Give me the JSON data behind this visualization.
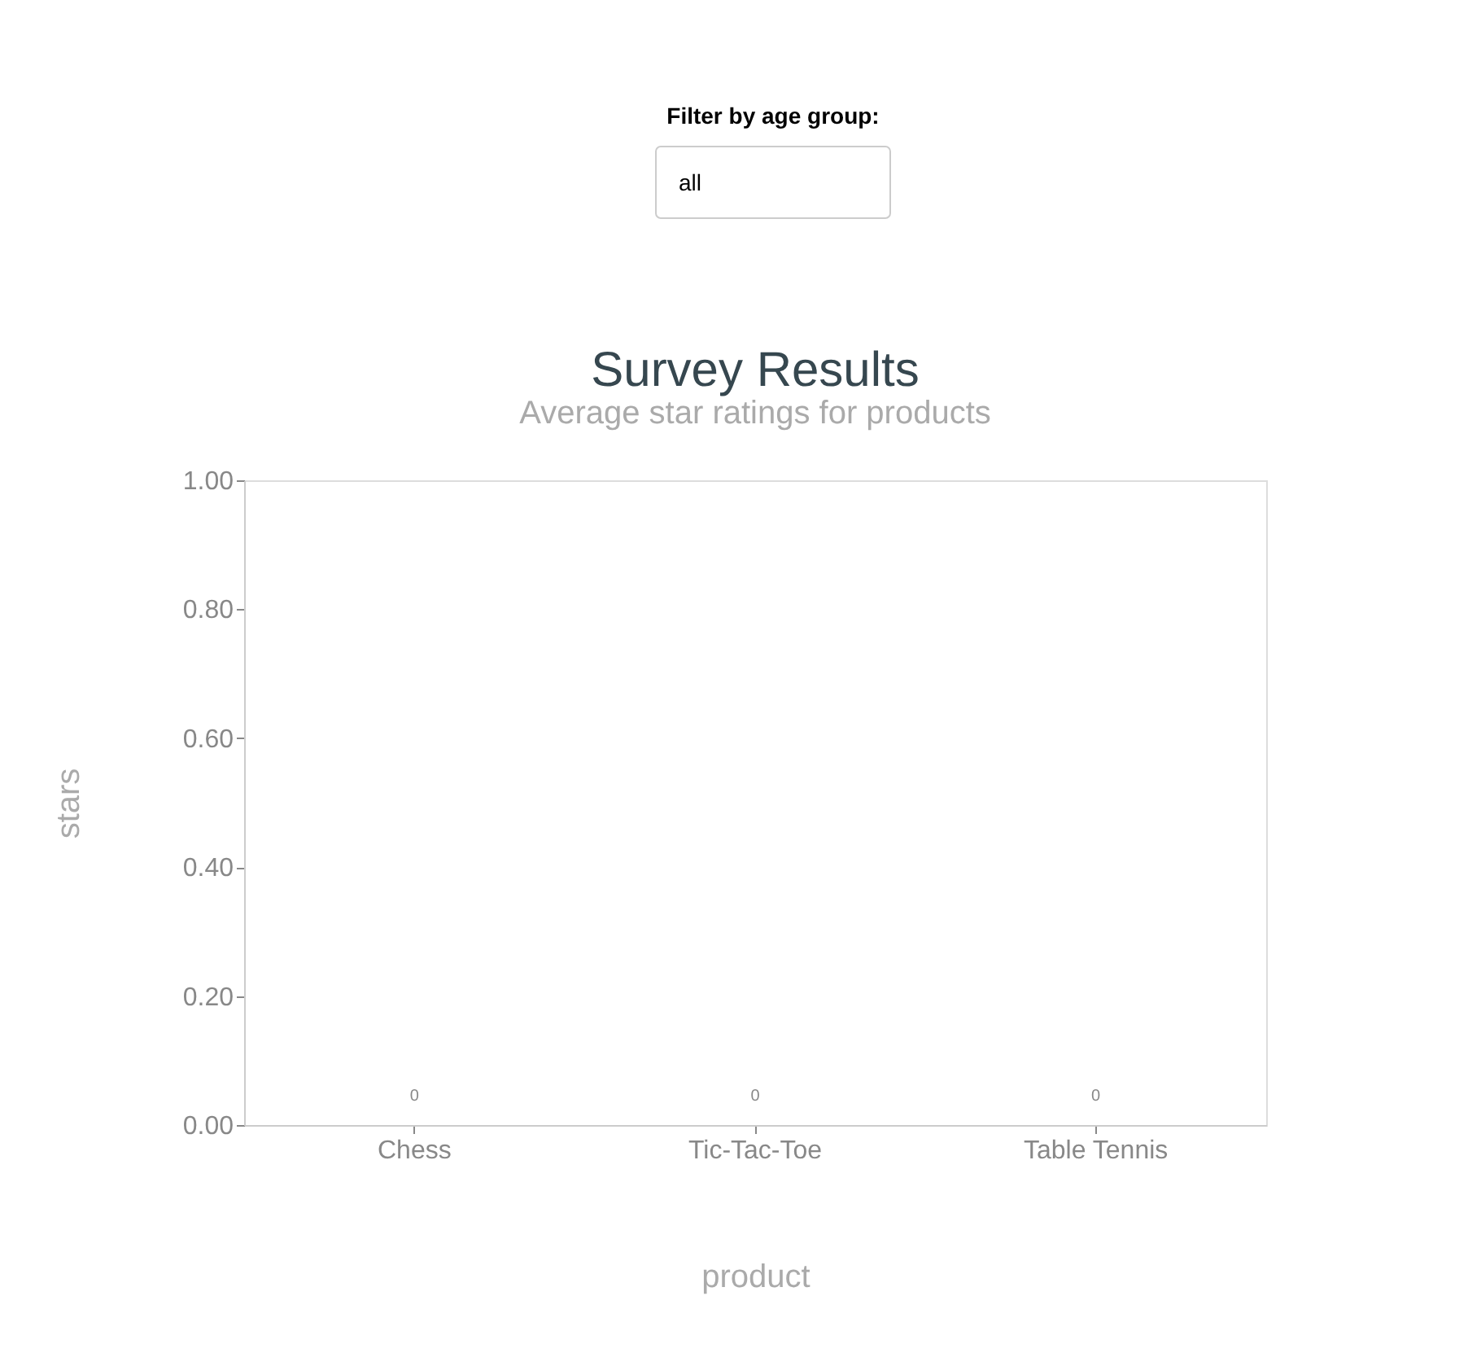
{
  "chart_data": {
    "type": "bar",
    "title": "Survey Results",
    "subtitle": "Average star ratings for products",
    "xlabel": "product",
    "ylabel": "stars",
    "categories": [
      "Chess",
      "Tic-Tac-Toe",
      "Table Tennis"
    ],
    "values": [
      0,
      0,
      0
    ],
    "ylim": [
      0,
      1
    ],
    "yticks": [
      {
        "value": 0,
        "label": "0.00"
      },
      {
        "value": 0.2,
        "label": "0.20"
      },
      {
        "value": 0.4,
        "label": "0.40"
      },
      {
        "value": 0.6,
        "label": "0.60"
      },
      {
        "value": 0.8,
        "label": "0.80"
      },
      {
        "value": 1,
        "label": "1.00"
      }
    ],
    "data_labels": true,
    "grid": false,
    "annotations": [
      "Filter by age group:",
      "all"
    ]
  }
}
